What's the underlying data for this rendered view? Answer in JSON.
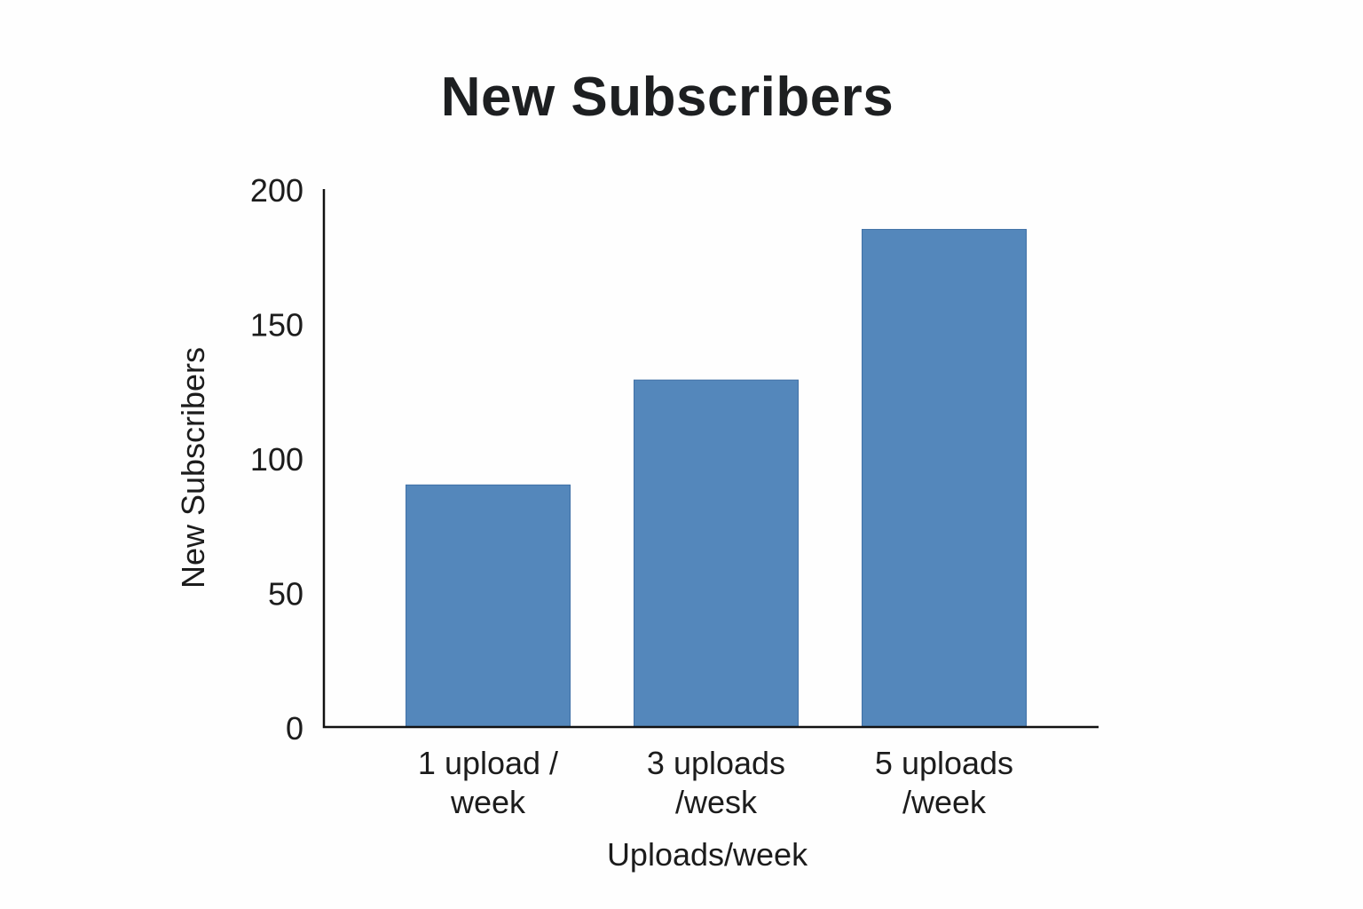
{
  "chart_data": {
    "type": "bar",
    "title": "New Subscribers",
    "xlabel": "Uploads/week",
    "ylabel": "New Subscribers",
    "categories": [
      [
        "1 upload /",
        "week"
      ],
      [
        "3 uploads",
        "/wesk"
      ],
      [
        "5 uploads",
        "/week"
      ]
    ],
    "values": [
      90,
      129,
      185
    ],
    "ylim": [
      0,
      200
    ],
    "yticks": [
      "0",
      "50",
      "100",
      "150",
      "200"
    ],
    "grid": false,
    "legend": "none",
    "bar_color": "#5487bb"
  }
}
